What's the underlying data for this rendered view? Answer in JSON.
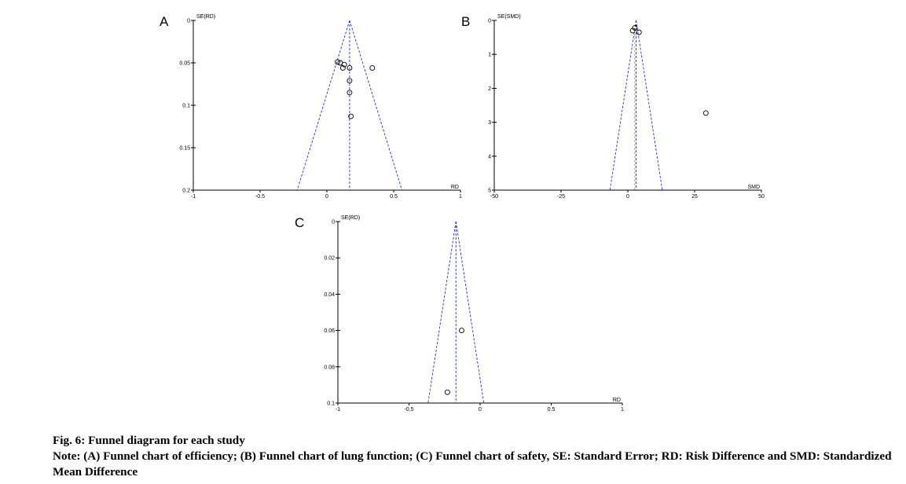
{
  "caption": {
    "title": "Fig. 6: Funnel diagram for each study",
    "note": "Note: (A) Funnel chart of efficiency; (B) Funnel chart of lung function; (C) Funnel chart of safety, SE: Standard Error; RD: Risk Difference and SMD: Standardized Mean Difference"
  },
  "chart_data": [
    {
      "type": "scatter",
      "panel": "A",
      "title": "",
      "xlabel": "RD",
      "ylabel": "SE(RD)",
      "xlim": [
        -1,
        1
      ],
      "ylim": [
        0,
        0.2
      ],
      "y_reversed": true,
      "xticks": [
        -1,
        -0.5,
        0,
        0.5,
        1
      ],
      "xtick_labels": [
        "-1",
        "-0.5",
        "0",
        "0.5",
        "1"
      ],
      "yticks": [
        0,
        0.05,
        0.1,
        0.15,
        0.2
      ],
      "ytick_labels": [
        "0",
        "0.05",
        "0.1",
        "0.15",
        "0.2"
      ],
      "pooled_estimate": 0.17,
      "funnel_se_max": 0.2,
      "points": [
        {
          "x": 0.08,
          "y": 0.049
        },
        {
          "x": 0.1,
          "y": 0.05
        },
        {
          "x": 0.13,
          "y": 0.052
        },
        {
          "x": 0.12,
          "y": 0.056
        },
        {
          "x": 0.17,
          "y": 0.056
        },
        {
          "x": 0.34,
          "y": 0.056
        },
        {
          "x": 0.17,
          "y": 0.071
        },
        {
          "x": 0.17,
          "y": 0.085
        },
        {
          "x": 0.18,
          "y": 0.113
        }
      ]
    },
    {
      "type": "scatter",
      "panel": "B",
      "title": "",
      "xlabel": "SMD",
      "ylabel": "SE(SMD)",
      "xlim": [
        -50,
        50
      ],
      "ylim": [
        0,
        5
      ],
      "y_reversed": true,
      "xticks": [
        -50,
        -25,
        0,
        25,
        50
      ],
      "xtick_labels": [
        "-50",
        "-25",
        "0",
        "25",
        "50"
      ],
      "yticks": [
        0,
        1,
        2,
        3,
        4,
        5
      ],
      "ytick_labels": [
        "0",
        "1",
        "2",
        "3",
        "4",
        "5"
      ],
      "pooled_estimate": 3.1,
      "null_line": 2.6,
      "funnel_se_max": 5,
      "points": [
        {
          "x": 2.6,
          "y": 0.22
        },
        {
          "x": 1.8,
          "y": 0.3
        },
        {
          "x": 4.2,
          "y": 0.35
        },
        {
          "x": 29.2,
          "y": 2.73
        }
      ]
    },
    {
      "type": "scatter",
      "panel": "C",
      "title": "",
      "xlabel": "RD",
      "ylabel": "SE(RD)",
      "xlim": [
        -1,
        1
      ],
      "ylim": [
        0,
        0.1
      ],
      "y_reversed": true,
      "xticks": [
        -1,
        -0.5,
        0,
        0.5,
        1
      ],
      "xtick_labels": [
        "-1",
        "-0.5",
        "0",
        "0.5",
        "1"
      ],
      "yticks": [
        0,
        0.02,
        0.04,
        0.06,
        0.08,
        0.1
      ],
      "ytick_labels": [
        "0",
        "0.02",
        "0.04",
        "0.06",
        "0.08",
        "0.1"
      ],
      "pooled_estimate": -0.17,
      "funnel_se_max": 0.1,
      "points": [
        {
          "x": -0.13,
          "y": 0.06
        },
        {
          "x": -0.23,
          "y": 0.094
        }
      ]
    }
  ]
}
